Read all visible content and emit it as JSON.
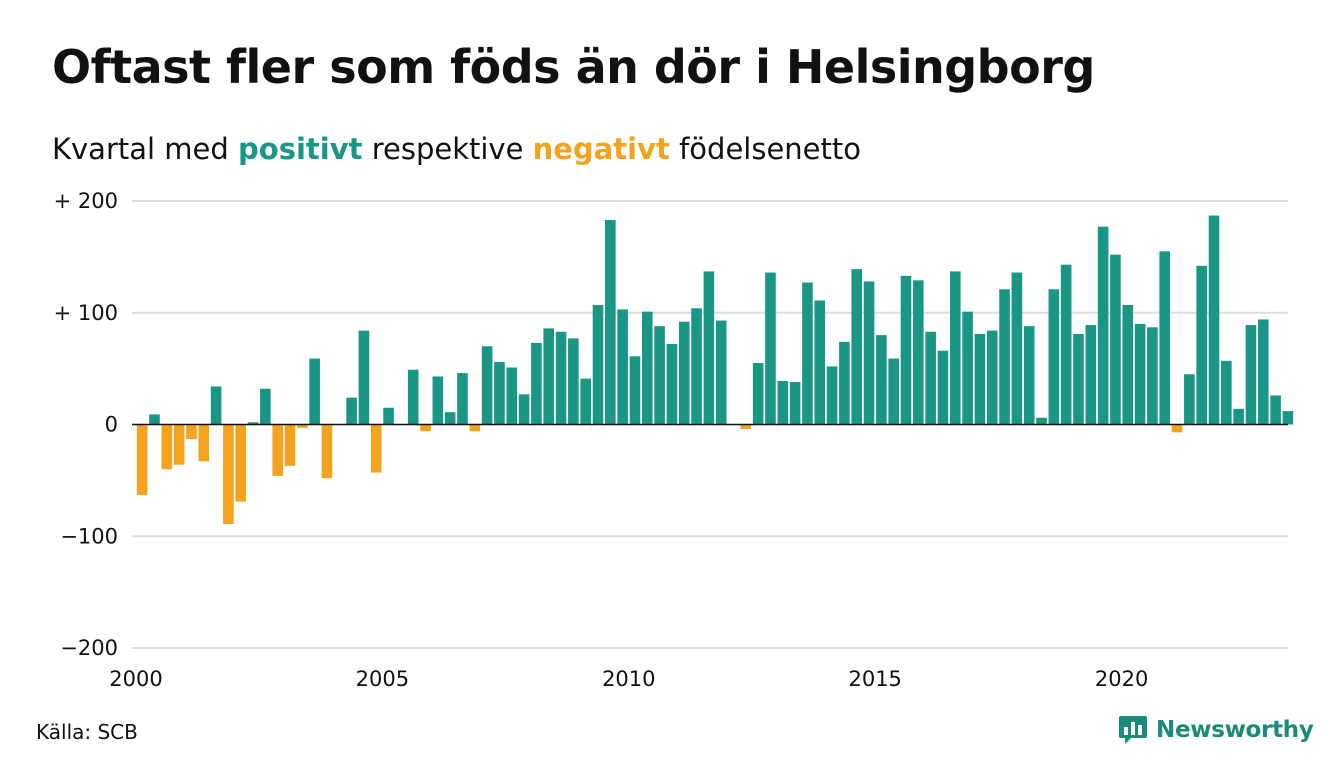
{
  "title": "Oftast fler som föds än dör i Helsingborg",
  "subtitle": {
    "prefix": "Kvartal med ",
    "positive_word": "positivt",
    "middle": " respektive ",
    "negative_word": "negativt",
    "suffix": " födelsenetto"
  },
  "source": "Källa: SCB",
  "brand": "Newsworthy",
  "colors": {
    "positive": "#1a9685",
    "negative": "#f5a31e",
    "grid": "#dddddd",
    "zero_line": "#111111",
    "brand": "#1a8a7a"
  },
  "chart_data": {
    "type": "bar",
    "ylim": [
      -200,
      200
    ],
    "y_ticks": [
      {
        "value": 200,
        "label": "+ 200"
      },
      {
        "value": 100,
        "label": "+ 100"
      },
      {
        "value": 0,
        "label": "0"
      },
      {
        "value": -100,
        "label": "−100"
      },
      {
        "value": -200,
        "label": "−200"
      }
    ],
    "x_ticks": [
      "2000",
      "2005",
      "2010",
      "2015",
      "2020"
    ],
    "x_start_year": 2000,
    "periods_per_year": 4,
    "grid": true,
    "values": [
      -63,
      9,
      -40,
      -36,
      -13,
      -33,
      34,
      -89,
      -69,
      2,
      32,
      -46,
      -37,
      -3,
      59,
      -48,
      0,
      24,
      84,
      -43,
      15,
      0,
      49,
      -6,
      43,
      11,
      46,
      -6,
      70,
      56,
      51,
      27,
      73,
      86,
      83,
      77,
      41,
      107,
      183,
      103,
      61,
      101,
      88,
      72,
      92,
      104,
      137,
      93,
      0,
      -4,
      55,
      136,
      39,
      38,
      127,
      111,
      52,
      74,
      139,
      128,
      80,
      59,
      133,
      129,
      83,
      66,
      137,
      101,
      81,
      84,
      121,
      136,
      88,
      6,
      121,
      143,
      81,
      89,
      177,
      152,
      107,
      90,
      87,
      155,
      -7,
      45,
      142,
      187,
      57,
      14,
      89,
      94,
      26,
      12
    ]
  }
}
